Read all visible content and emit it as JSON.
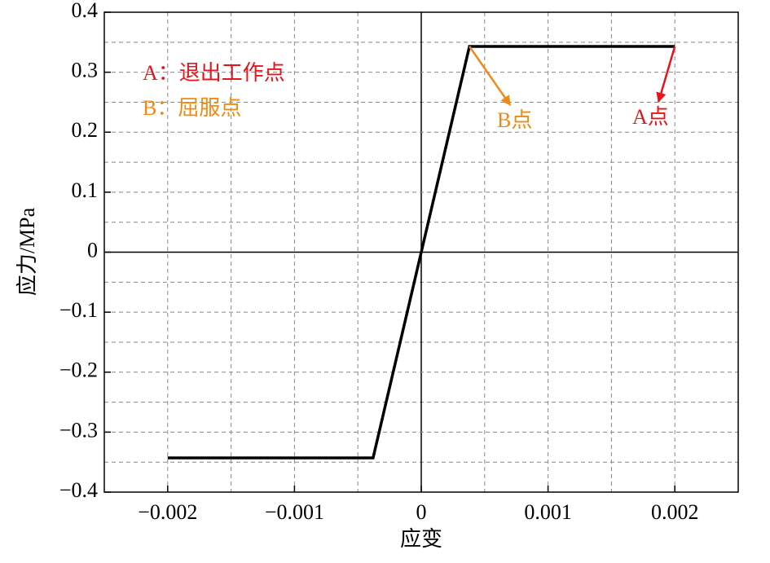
{
  "chart_data": {
    "type": "line",
    "x_label": "应变",
    "y_label": "应力/MPa",
    "x": [
      -0.002,
      -0.00038,
      0.00038,
      0.002
    ],
    "series": [
      {
        "color": "#000000",
        "values": [
          -0.343,
          -0.343,
          0.343,
          0.343
        ]
      }
    ],
    "xlim": [
      -0.0025,
      0.0025
    ],
    "xticks": [
      {
        "value": -0.002,
        "label": "−0.002"
      },
      {
        "value": -0.001,
        "label": "−0.001"
      },
      0,
      0.001,
      0.002
    ],
    "x_minor_grid": [
      -0.0015,
      -0.0005,
      0.0005,
      0.0015
    ],
    "ylim": [
      -0.4,
      0.4
    ],
    "yticks": [
      {
        "value": -0.4,
        "label": "−0.4"
      },
      {
        "value": -0.3,
        "label": "−0.3"
      },
      {
        "value": -0.2,
        "label": "−0.2"
      },
      {
        "value": -0.1,
        "label": "−0.1"
      },
      0,
      0.1,
      0.2,
      0.3,
      0.4
    ],
    "y_minor_grid": [
      -0.35,
      -0.25,
      -0.15,
      -0.05,
      0.05,
      0.15,
      0.25,
      0.35
    ],
    "grid": true,
    "notes": [
      {
        "text": "A：退出工作点",
        "color": "#e8141c"
      },
      {
        "text": "B：屈服点",
        "color": "#f08a14"
      }
    ],
    "point_labels": [
      {
        "text": "B点",
        "color": "#f08a14",
        "point": 2
      },
      {
        "text": "A点",
        "color": "#e8141c",
        "point": 3
      }
    ]
  }
}
